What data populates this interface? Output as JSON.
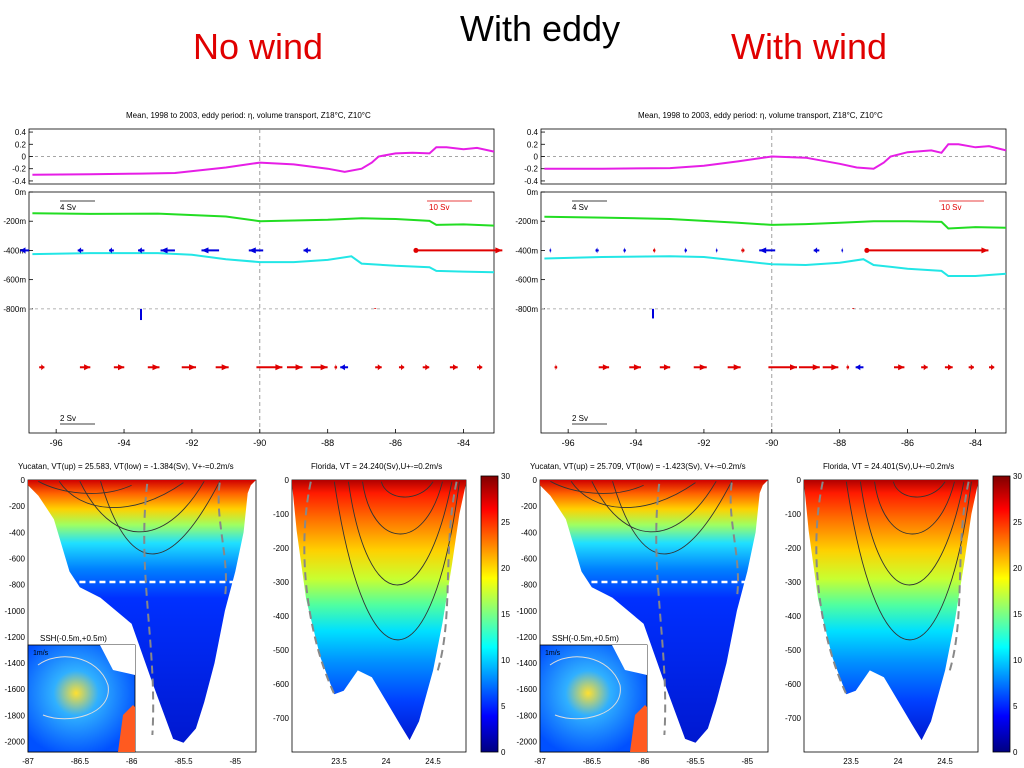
{
  "header": {
    "with_eddy": "With eddy",
    "no_wind": "No wind",
    "with_wind": "With wind"
  },
  "colors": {
    "ssh": "#e61ee6",
    "z18": "#22dd22",
    "z10": "#22e6e6",
    "pos": "#e00000",
    "neg": "#0000dd"
  },
  "chart_data": [
    {
      "type": "line",
      "panel": "no-wind-transport",
      "title": "Mean, 1998 to 2003, eddy period: η, volume transport, Z18°C, Z10°C",
      "x_ticks": [
        "-96",
        "-94",
        "-92",
        "-90",
        "-88",
        "-86",
        "-84"
      ],
      "eta_ticks": [
        "0.4",
        "0.2",
        "0",
        "-0.2",
        "-0.4"
      ],
      "depth_ticks": [
        "0m",
        "-200m",
        "-400m",
        "-600m",
        "-800m"
      ],
      "scale_labels": {
        "upper": "4 Sv",
        "upper_right": "10 Sv",
        "lower": "2 Sv"
      },
      "xlim": [
        -96.8,
        -83.1
      ],
      "eta_ylim": [
        -0.45,
        0.45
      ],
      "depth_ylim": [
        -1650,
        0
      ],
      "series": [
        {
          "key": "eta",
          "x": [
            -96.7,
            -95,
            -93.5,
            -92.5,
            -91,
            -90,
            -89,
            -88,
            -87.5,
            -87,
            -86.7,
            -86.5,
            -86,
            -85.5,
            -85,
            -84.8,
            -84.5,
            -84,
            -83.6,
            -83.1
          ],
          "values": [
            -0.3,
            -0.29,
            -0.28,
            -0.27,
            -0.18,
            -0.1,
            -0.13,
            -0.2,
            -0.25,
            -0.2,
            -0.1,
            0.0,
            0.05,
            0.06,
            0.05,
            0.15,
            0.15,
            0.12,
            0.14,
            0.08
          ]
        },
        {
          "key": "z18",
          "x": [
            -96.7,
            -95,
            -93,
            -91,
            -90,
            -89,
            -88,
            -87,
            -86,
            -85,
            -84.8,
            -84,
            -83.1
          ],
          "values": [
            -145,
            -150,
            -148,
            -168,
            -200,
            -195,
            -190,
            -180,
            -185,
            -198,
            -225,
            -222,
            -230
          ]
        },
        {
          "key": "z10",
          "x": [
            -96.7,
            -95,
            -93,
            -92,
            -91,
            -90,
            -89,
            -88,
            -87.3,
            -87,
            -86,
            -85,
            -84.8,
            -84,
            -83.1
          ],
          "values": [
            -425,
            -418,
            -418,
            -430,
            -460,
            -480,
            -480,
            -465,
            -440,
            -490,
            -505,
            -515,
            -540,
            -545,
            -550
          ]
        }
      ],
      "transport_upper_depth": -400,
      "transport_upper": [
        {
          "x": -96.8,
          "u": -0.55
        },
        {
          "x": -95.2,
          "u": -0.35
        },
        {
          "x": -94.3,
          "u": -0.3
        },
        {
          "x": -93.4,
          "u": -0.4
        },
        {
          "x": -92.5,
          "u": -0.9
        },
        {
          "x": -91.2,
          "u": -1.1
        },
        {
          "x": -89.9,
          "u": -0.9
        },
        {
          "x": -88.5,
          "u": -0.45
        },
        {
          "x": -85.4,
          "u": 5.4
        }
      ],
      "transport_mid_depth": -850,
      "transport_mid": [
        {
          "x": -93.5,
          "v": -0.7
        },
        {
          "x": -86.6,
          "v": 0.05
        }
      ],
      "transport_lower_depth": -1200,
      "transport_lower": [
        {
          "x": -96.5,
          "u": 0.2
        },
        {
          "x": -95.3,
          "u": 0.4
        },
        {
          "x": -94.3,
          "u": 0.4
        },
        {
          "x": -93.3,
          "u": 0.45
        },
        {
          "x": -92.3,
          "u": 0.55
        },
        {
          "x": -91.3,
          "u": 0.5
        },
        {
          "x": -90.1,
          "u": 1.0
        },
        {
          "x": -89.2,
          "u": 0.6
        },
        {
          "x": -88.5,
          "u": 0.65
        },
        {
          "x": -87.8,
          "u": 0.1
        },
        {
          "x": -87.4,
          "u": -0.3
        },
        {
          "x": -86.6,
          "u": 0.25
        },
        {
          "x": -85.9,
          "u": 0.2
        },
        {
          "x": -85.2,
          "u": 0.25
        },
        {
          "x": -84.4,
          "u": 0.3
        },
        {
          "x": -83.6,
          "u": 0.2
        }
      ]
    },
    {
      "type": "line",
      "panel": "with-wind-transport",
      "title": "Mean, 1998 to 2003, eddy period: η, volume transport, Z18°C, Z10°C",
      "x_ticks": [
        "-96",
        "-94",
        "-92",
        "-90",
        "-88",
        "-86",
        "-84"
      ],
      "eta_ticks": [
        "0.4",
        "0.2",
        "0",
        "-0.2",
        "-0.4"
      ],
      "depth_ticks": [
        "0m",
        "-200m",
        "-400m",
        "-600m",
        "-800m"
      ],
      "scale_labels": {
        "upper": "4 Sv",
        "upper_right": "10 Sv",
        "lower": "2 Sv"
      },
      "xlim": [
        -96.8,
        -83.1
      ],
      "eta_ylim": [
        -0.45,
        0.45
      ],
      "depth_ylim": [
        -1650,
        0
      ],
      "series": [
        {
          "key": "eta",
          "x": [
            -96.7,
            -95,
            -93,
            -92,
            -91,
            -90,
            -89,
            -88,
            -87.5,
            -87,
            -86.7,
            -86.5,
            -86,
            -85.3,
            -85,
            -84.8,
            -84.5,
            -84,
            -83.6,
            -83.1
          ],
          "values": [
            -0.2,
            -0.2,
            -0.19,
            -0.15,
            -0.08,
            0.0,
            -0.02,
            -0.12,
            -0.18,
            -0.2,
            -0.1,
            0.0,
            0.07,
            0.1,
            0.06,
            0.2,
            0.2,
            0.15,
            0.17,
            0.1
          ]
        },
        {
          "key": "z18",
          "x": [
            -96.7,
            -95,
            -93,
            -91,
            -90,
            -89,
            -88,
            -87,
            -86,
            -85,
            -84.8,
            -84,
            -83.1
          ],
          "values": [
            -170,
            -175,
            -185,
            -210,
            -225,
            -220,
            -210,
            -200,
            -200,
            -205,
            -250,
            -240,
            -245
          ]
        },
        {
          "key": "z10",
          "x": [
            -96.7,
            -95,
            -93,
            -92,
            -91,
            -90,
            -89,
            -88,
            -87.3,
            -87,
            -86,
            -85,
            -84.8,
            -84,
            -83.1
          ],
          "values": [
            -455,
            -445,
            -440,
            -445,
            -470,
            -495,
            -500,
            -485,
            -460,
            -500,
            -525,
            -540,
            -575,
            -575,
            -560
          ]
        }
      ],
      "transport_upper_depth": -400,
      "transport_upper": [
        {
          "x": -96.5,
          "u": -0.1
        },
        {
          "x": -95.1,
          "u": -0.2
        },
        {
          "x": -94.3,
          "u": -0.15
        },
        {
          "x": -93.5,
          "u": 0.15
        },
        {
          "x": -92.5,
          "u": -0.15
        },
        {
          "x": -91.6,
          "u": -0.1
        },
        {
          "x": -90.9,
          "u": 0.2
        },
        {
          "x": -89.9,
          "u": -1.0
        },
        {
          "x": -88.6,
          "u": -0.35
        },
        {
          "x": -87.9,
          "u": -0.1
        },
        {
          "x": -87.2,
          "u": 7.6
        }
      ],
      "transport_mid_depth": -850,
      "transport_mid": [
        {
          "x": -93.5,
          "v": -0.6
        },
        {
          "x": -87.6,
          "v": 0.05
        }
      ],
      "transport_lower_depth": -1200,
      "transport_lower": [
        {
          "x": -96.4,
          "u": 0.1
        },
        {
          "x": -95.1,
          "u": 0.4
        },
        {
          "x": -94.2,
          "u": 0.45
        },
        {
          "x": -93.3,
          "u": 0.4
        },
        {
          "x": -92.3,
          "u": 0.5
        },
        {
          "x": -91.3,
          "u": 0.5
        },
        {
          "x": -90.1,
          "u": 1.1
        },
        {
          "x": -89.2,
          "u": 0.8
        },
        {
          "x": -88.5,
          "u": 0.6
        },
        {
          "x": -87.8,
          "u": 0.1
        },
        {
          "x": -87.3,
          "u": -0.3
        },
        {
          "x": -86.4,
          "u": 0.4
        },
        {
          "x": -85.6,
          "u": 0.25
        },
        {
          "x": -84.9,
          "u": 0.3
        },
        {
          "x": -84.2,
          "u": 0.2
        },
        {
          "x": -83.6,
          "u": 0.2
        }
      ]
    },
    {
      "type": "heatmap",
      "panel": "no-wind-yucatan",
      "title": "Yucatan, VT(up) = 25.583, VT(low) = -1.384(Sv), V+-=0.2m/s",
      "x_ticks": [
        "-87",
        "-86.5",
        "-86",
        "-85.5",
        "-85"
      ],
      "y_ticks": [
        "0",
        "-200",
        "-400",
        "-600",
        "-800",
        "-1000",
        "-1200",
        "-1400",
        "-1600",
        "-1800",
        "-2000"
      ],
      "inset_title": "SSH(-0.5m,+0.5m)",
      "inset_scale": "1m/s",
      "xlim": [
        -87,
        -84.8
      ],
      "ylim": [
        -2080,
        0
      ]
    },
    {
      "type": "heatmap",
      "panel": "no-wind-florida",
      "title": "Florida, VT = 24.240(Sv),U+-=0.2m/s",
      "x_ticks": [
        "23.5",
        "24",
        "24.5"
      ],
      "y_ticks": [
        "0",
        "-100",
        "-200",
        "-300",
        "-400",
        "-500",
        "-600",
        "-700"
      ],
      "colorbar_ticks": [
        "30",
        "25",
        "20",
        "15",
        "10",
        "5",
        "0"
      ],
      "colorbar_range": [
        0,
        30
      ],
      "xlim": [
        23.0,
        24.85
      ],
      "ylim": [
        -800,
        0
      ]
    },
    {
      "type": "heatmap",
      "panel": "with-wind-yucatan",
      "title": "Yucatan, VT(up) = 25.709, VT(low) = -1.423(Sv), V+-=0.2m/s",
      "x_ticks": [
        "-87",
        "-86.5",
        "-86",
        "-85.5",
        "-85"
      ],
      "y_ticks": [
        "0",
        "-200",
        "-400",
        "-600",
        "-800",
        "-1000",
        "-1200",
        "-1400",
        "-1600",
        "-1800",
        "-2000"
      ],
      "inset_title": "SSH(-0.5m,+0.5m)",
      "inset_scale": "1m/s",
      "xlim": [
        -87,
        -84.8
      ],
      "ylim": [
        -2080,
        0
      ]
    },
    {
      "type": "heatmap",
      "panel": "with-wind-florida",
      "title": "Florida, VT = 24.401(Sv),U+-=0.2m/s",
      "x_ticks": [
        "23.5",
        "24",
        "24.5"
      ],
      "y_ticks": [
        "0",
        "-100",
        "-200",
        "-300",
        "-400",
        "-500",
        "-600",
        "-700"
      ],
      "colorbar_ticks": [
        "30",
        "25",
        "20",
        "15",
        "10",
        "5",
        "0"
      ],
      "colorbar_range": [
        0,
        30
      ],
      "xlim": [
        23.0,
        24.85
      ],
      "ylim": [
        -800,
        0
      ]
    }
  ]
}
